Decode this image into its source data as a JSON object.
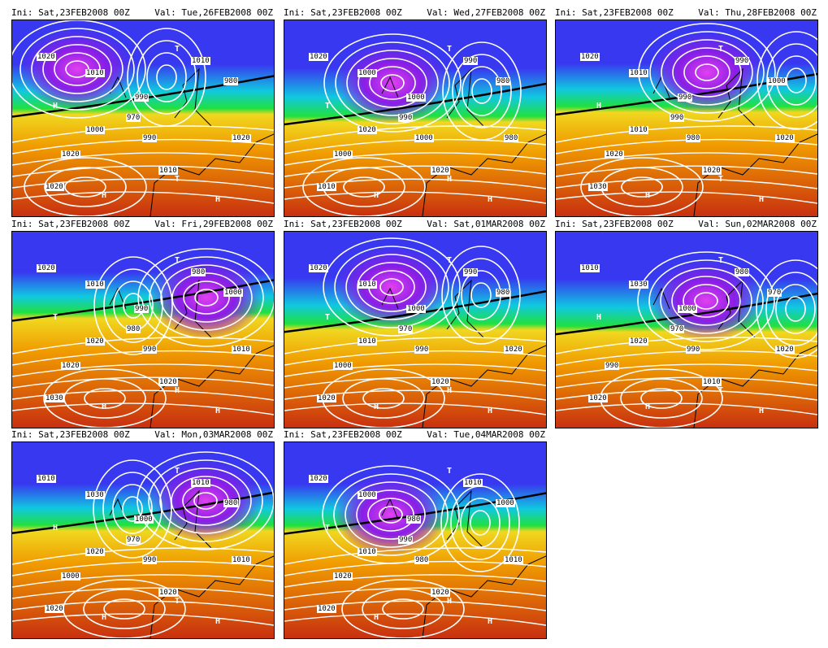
{
  "panels": [
    {
      "ini": "Ini: Sat,23FEB2008 00Z",
      "val": "Val: Tue,26FEB2008 00Z",
      "labels": [
        "1020",
        "1010",
        "990",
        "1010",
        "980",
        "970",
        "990",
        "1000",
        "1020",
        "1010",
        "1020",
        "1020"
      ],
      "markers": [
        "H",
        "T",
        "H",
        "T",
        "H"
      ]
    },
    {
      "ini": "Ini: Sat,23FEB2008 00Z",
      "val": "Val: Wed,27FEB2008 00Z",
      "labels": [
        "1020",
        "1000",
        "1000",
        "990",
        "980",
        "990",
        "1000",
        "1020",
        "1010",
        "1020",
        "980",
        "1000"
      ],
      "markers": [
        "T",
        "T",
        "H",
        "H",
        "H"
      ]
    },
    {
      "ini": "Ini: Sat,23FEB2008 00Z",
      "val": "Val: Thu,28FEB2008 00Z",
      "labels": [
        "1020",
        "1010",
        "990",
        "990",
        "1000",
        "990",
        "980",
        "1010",
        "1030",
        "1020",
        "1020",
        "1020"
      ],
      "markers": [
        "H",
        "T",
        "H",
        "T",
        "H"
      ]
    },
    {
      "ini": "Ini: Sat,23FEB2008 00Z",
      "val": "Val: Fri,29FEB2008 00Z",
      "labels": [
        "1020",
        "1010",
        "990",
        "980",
        "1000",
        "980",
        "990",
        "1020",
        "1030",
        "1020",
        "1010",
        "1020"
      ],
      "markers": [
        "T",
        "T",
        "H",
        "H",
        "H"
      ]
    },
    {
      "ini": "Ini: Sat,23FEB2008 00Z",
      "val": "Val: Sat,01MAR2008 00Z",
      "labels": [
        "1020",
        "1010",
        "1000",
        "990",
        "980",
        "970",
        "990",
        "1010",
        "1020",
        "1020",
        "1020",
        "1000"
      ],
      "markers": [
        "T",
        "T",
        "H",
        "H",
        "H"
      ]
    },
    {
      "ini": "Ini: Sat,23FEB2008 00Z",
      "val": "Val: Sun,02MAR2008 00Z",
      "labels": [
        "1010",
        "1030",
        "1000",
        "980",
        "970",
        "970",
        "990",
        "1020",
        "1020",
        "1010",
        "1020",
        "990"
      ],
      "markers": [
        "H",
        "T",
        "H",
        "T",
        "H"
      ]
    },
    {
      "ini": "Ini: Sat,23FEB2008 00Z",
      "val": "Val: Mon,03MAR2008 00Z",
      "labels": [
        "1010",
        "1030",
        "1000",
        "1010",
        "980",
        "970",
        "990",
        "1020",
        "1020",
        "1020",
        "1010",
        "1000"
      ],
      "markers": [
        "H",
        "T",
        "H",
        "T",
        "H"
      ]
    },
    {
      "ini": "Ini: Sat,23FEB2008 00Z",
      "val": "Val: Tue,04MAR2008 00Z",
      "labels": [
        "1020",
        "1000",
        "980",
        "1010",
        "1000",
        "990",
        "980",
        "1010",
        "1020",
        "1020",
        "1010",
        "1020"
      ],
      "markers": [
        "T",
        "T",
        "H",
        "H",
        "H"
      ]
    }
  ],
  "colors": {
    "purple": "#8a1ee6",
    "blue": "#3838f0",
    "cyan": "#10c8e0",
    "green": "#20e040",
    "yellow": "#f0d820",
    "orange": "#f09a00",
    "red": "#c83010"
  }
}
